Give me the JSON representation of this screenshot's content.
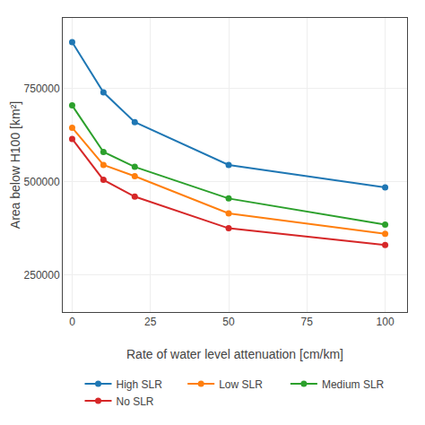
{
  "chart_data": {
    "type": "line",
    "x": [
      0,
      10,
      20,
      50,
      100
    ],
    "series": [
      {
        "name": "High SLR",
        "values": [
          875000,
          740000,
          660000,
          545000,
          485000
        ]
      },
      {
        "name": "Low SLR",
        "values": [
          645000,
          545000,
          515000,
          415000,
          360000
        ]
      },
      {
        "name": "Medium SLR",
        "values": [
          705000,
          580000,
          540000,
          455000,
          385000
        ]
      },
      {
        "name": "No SLR",
        "values": [
          615000,
          505000,
          460000,
          375000,
          330000
        ]
      }
    ],
    "xlabel": "Rate of water level attenuation [cm/km]",
    "ylabel": "Area below H100 [km²]",
    "xlim": [
      -3,
      107
    ],
    "ylim": [
      150000,
      940000
    ],
    "xticks": [
      0,
      25,
      50,
      75,
      100
    ],
    "yticks": [
      250000,
      500000,
      750000
    ],
    "grid": true,
    "legend": "bottom",
    "marker": "circle",
    "line_style": "solid"
  }
}
